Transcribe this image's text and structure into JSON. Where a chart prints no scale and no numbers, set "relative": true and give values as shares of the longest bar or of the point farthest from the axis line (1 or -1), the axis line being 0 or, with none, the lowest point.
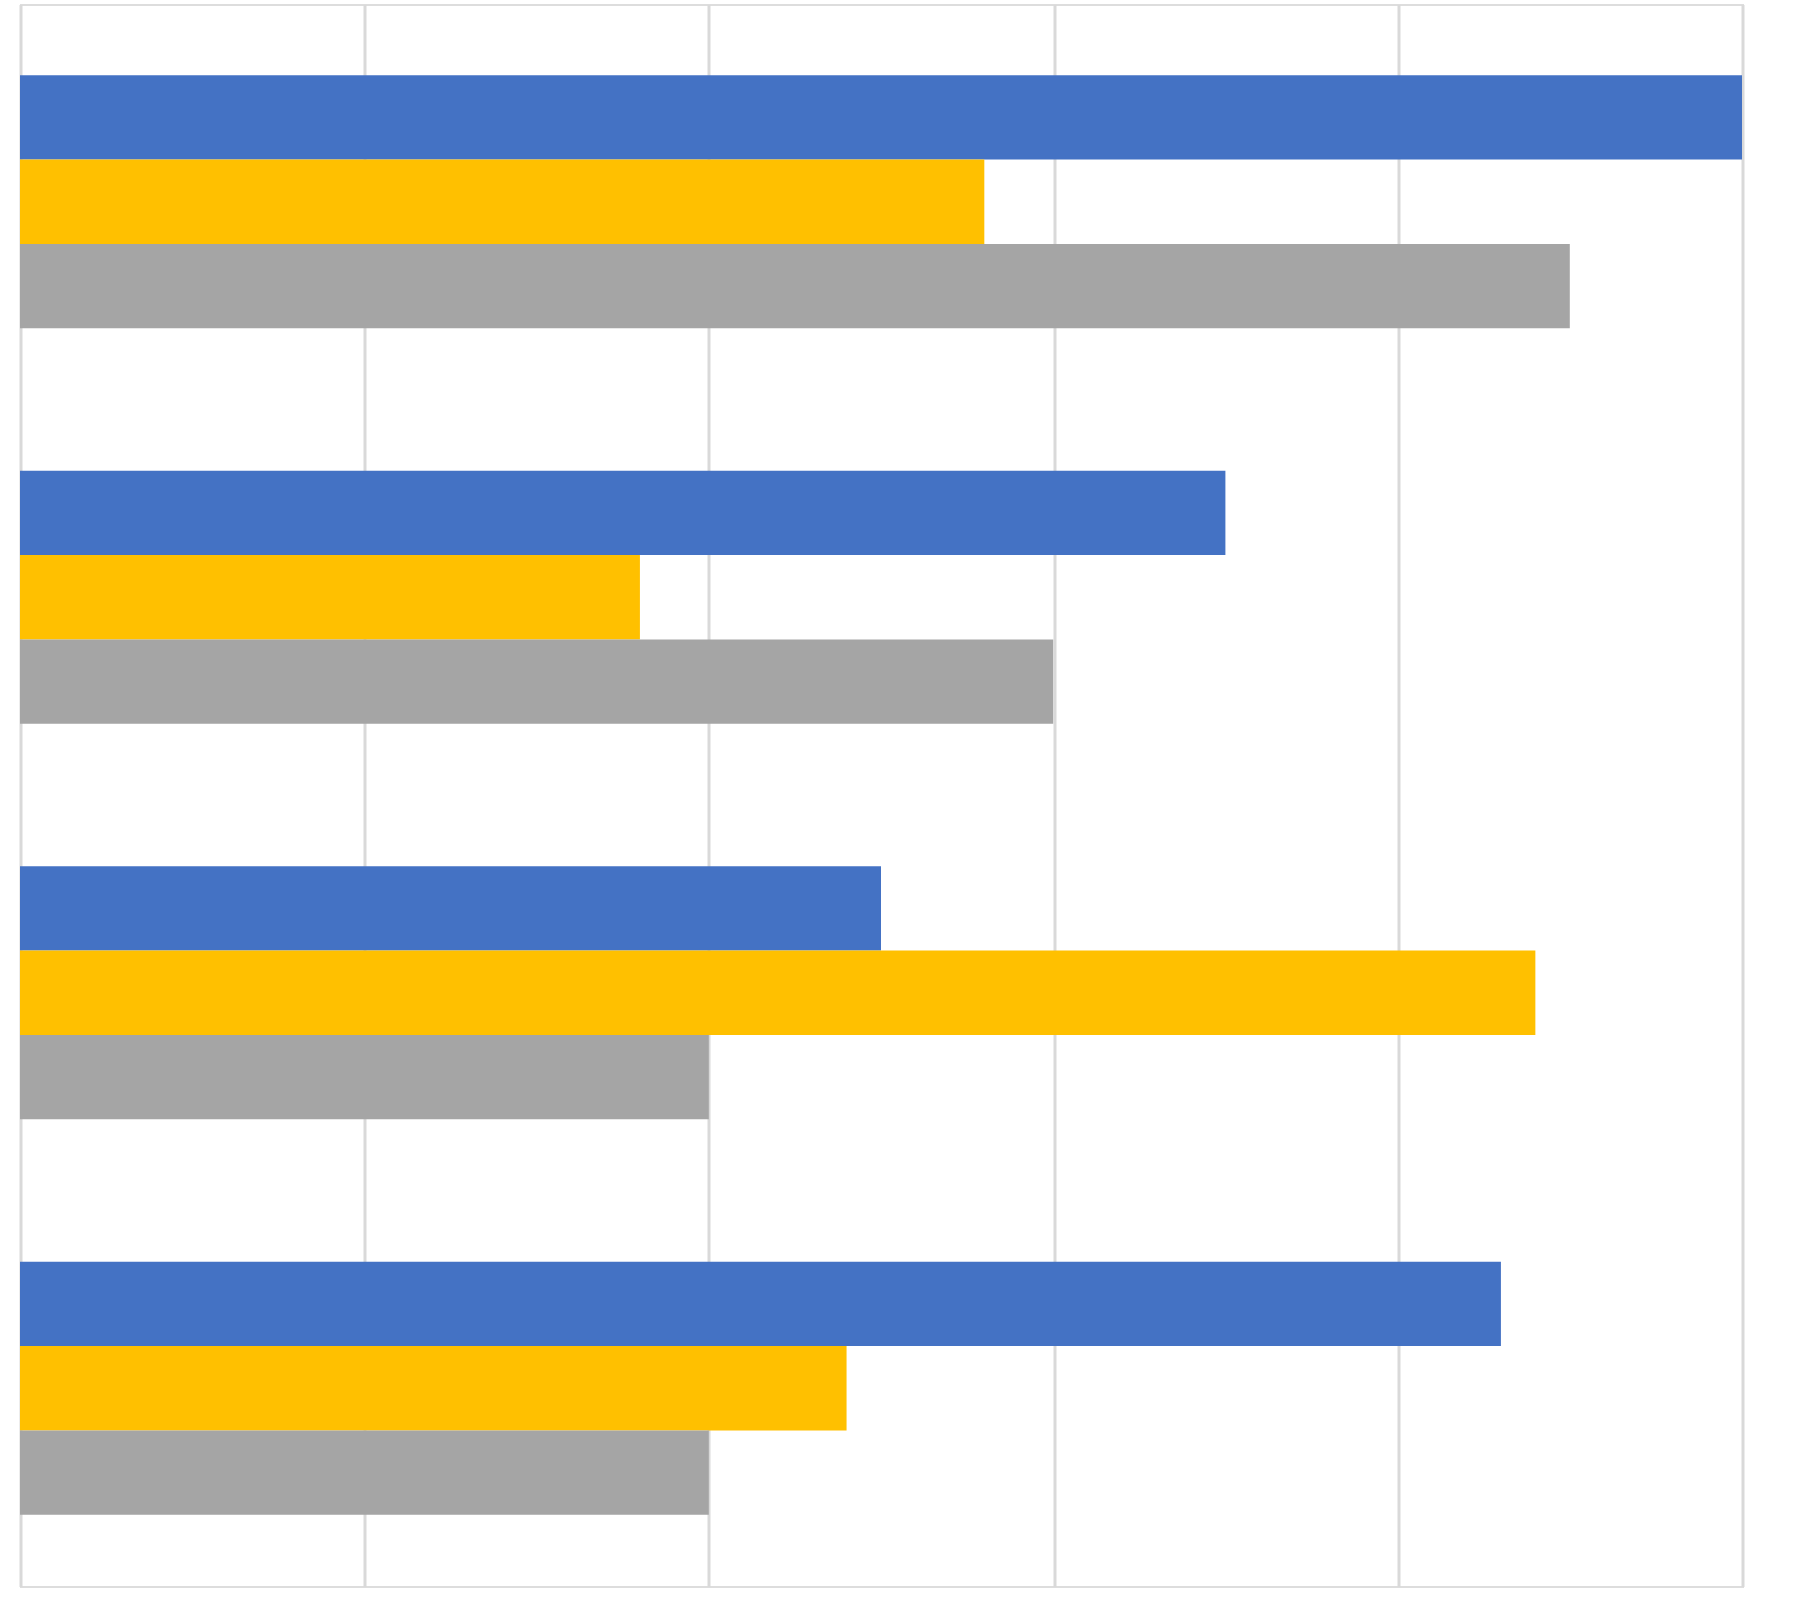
{
  "chart_data": {
    "type": "bar",
    "orientation": "horizontal",
    "relative": true,
    "grid": "x",
    "tick_labels": false,
    "categories": [
      null,
      null,
      null,
      null
    ],
    "series": [
      {
        "color": "#4472c4",
        "values": [
          1,
          0.7,
          0.5,
          0.86
        ]
      },
      {
        "color": "#ffc000",
        "values": [
          0.56,
          0.36,
          0.88,
          0.48
        ]
      },
      {
        "color": "#a5a5a5",
        "values": [
          0.9,
          0.6,
          0.4,
          0.4
        ]
      }
    ]
  }
}
